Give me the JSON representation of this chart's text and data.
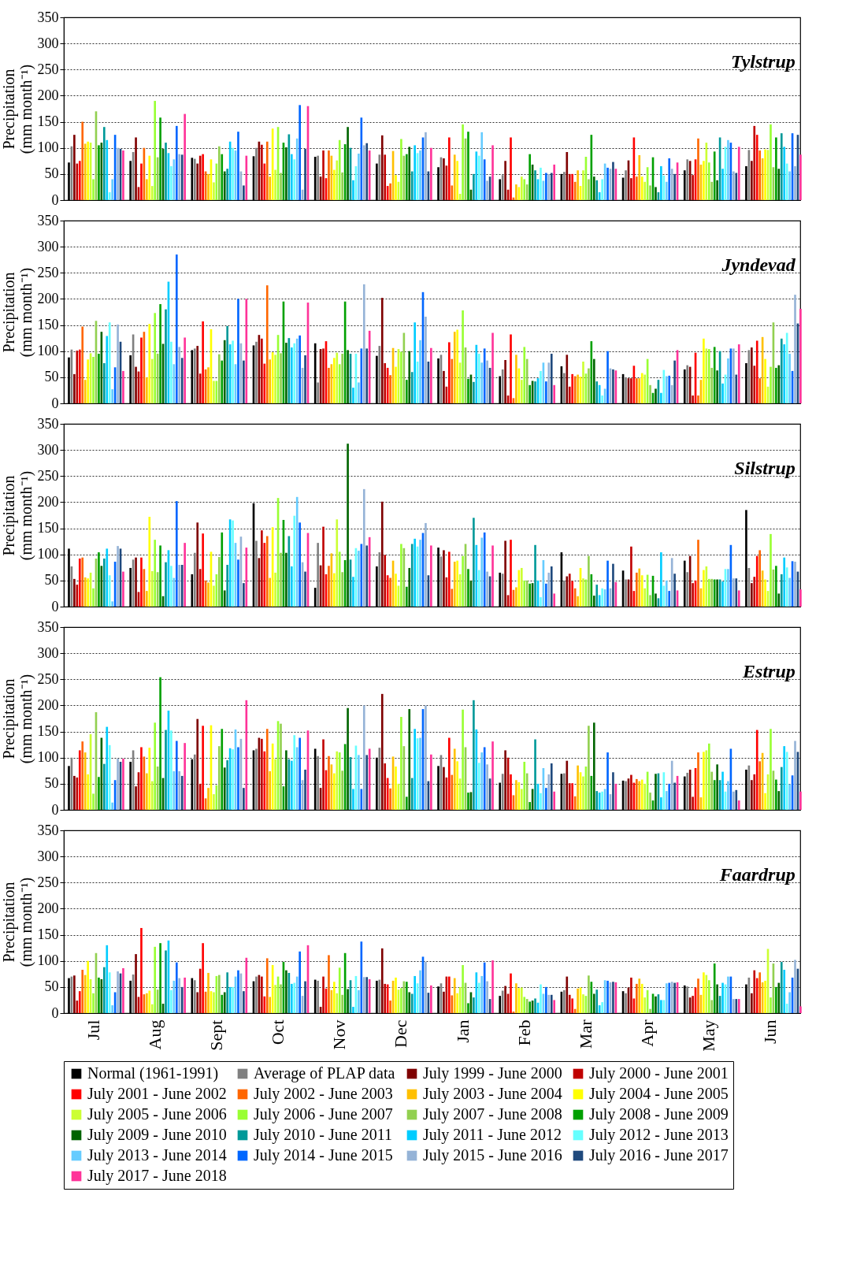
{
  "chart_data": [
    {
      "type": "bar",
      "title": "Tylstrup",
      "ylabel": "Precipitation (mm month⁻¹)",
      "categories": [
        null,
        null,
        null,
        null,
        null,
        null,
        null,
        null,
        null,
        null,
        null,
        null
      ],
      "ylim": [
        0,
        350
      ],
      "yticks": [
        0,
        50,
        100,
        150,
        200,
        250,
        300,
        350
      ],
      "grid": "y",
      "tick_labels": "y",
      "series": [
        {
          "color": "#000000",
          "values": [
            72,
            75,
            81,
            84,
            83,
            70,
            63,
            40,
            50,
            43,
            57,
            65
          ]
        },
        {
          "color": "#808080",
          "values": [
            103,
            92,
            79,
            100,
            85,
            87,
            82,
            48,
            54,
            57,
            78,
            96
          ]
        },
        {
          "color": "#7f0000",
          "values": [
            125,
            120,
            70,
            112,
            45,
            124,
            80,
            75,
            92,
            76,
            75,
            75
          ]
        },
        {
          "color": "#c00000",
          "values": [
            70,
            25,
            85,
            106,
            95,
            87,
            66,
            20,
            50,
            42,
            48,
            142
          ]
        },
        {
          "color": "#ff0000",
          "values": [
            75,
            70,
            88,
            70,
            42,
            27,
            120,
            120,
            50,
            120,
            78,
            125
          ]
        },
        {
          "color": "#ff6600",
          "values": [
            150,
            100,
            55,
            112,
            95,
            32,
            28,
            5,
            35,
            45,
            118,
            95
          ]
        },
        {
          "color": "#ffc000",
          "values": [
            108,
            40,
            50,
            45,
            85,
            94,
            87,
            30,
            57,
            86,
            68,
            80
          ]
        },
        {
          "color": "#ffff00",
          "values": [
            112,
            85,
            78,
            137,
            58,
            48,
            75,
            25,
            27,
            45,
            75,
            97
          ]
        },
        {
          "color": "#ccff33",
          "values": [
            110,
            27,
            34,
            58,
            76,
            35,
            12,
            45,
            57,
            35,
            110,
            96
          ]
        },
        {
          "color": "#99ff33",
          "values": [
            40,
            190,
            70,
            140,
            115,
            117,
            145,
            40,
            83,
            63,
            72,
            145
          ]
        },
        {
          "color": "#92d050",
          "values": [
            170,
            82,
            103,
            52,
            53,
            85,
            118,
            30,
            40,
            28,
            35,
            63
          ]
        },
        {
          "color": "#00a000",
          "values": [
            105,
            158,
            88,
            110,
            107,
            88,
            131,
            88,
            125,
            82,
            93,
            120
          ]
        },
        {
          "color": "#006400",
          "values": [
            110,
            98,
            55,
            101,
            140,
            102,
            20,
            68,
            45,
            25,
            38,
            60
          ]
        },
        {
          "color": "#009999",
          "values": [
            140,
            110,
            60,
            126,
            100,
            55,
            50,
            57,
            38,
            15,
            120,
            128
          ]
        },
        {
          "color": "#00ccff",
          "values": [
            115,
            90,
            112,
            88,
            38,
            105,
            93,
            40,
            15,
            65,
            60,
            102
          ]
        },
        {
          "color": "#66ffff",
          "values": [
            15,
            65,
            100,
            78,
            65,
            90,
            85,
            62,
            40,
            47,
            102,
            70
          ]
        },
        {
          "color": "#66ccff",
          "values": [
            40,
            78,
            95,
            118,
            89,
            95,
            130,
            37,
            70,
            35,
            115,
            55
          ]
        },
        {
          "color": "#0066ff",
          "values": [
            125,
            142,
            131,
            182,
            158,
            120,
            78,
            52,
            62,
            80,
            110,
            128
          ]
        },
        {
          "color": "#95b3d7",
          "values": [
            100,
            88,
            55,
            20,
            105,
            130,
            37,
            50,
            60,
            60,
            55,
            65
          ]
        },
        {
          "color": "#1f497d",
          "values": [
            98,
            87,
            28,
            98,
            109,
            55,
            45,
            52,
            73,
            50,
            52,
            125
          ]
        },
        {
          "color": "#ff3399",
          "values": [
            95,
            165,
            85,
            180,
            95,
            100,
            105,
            68,
            60,
            72,
            102,
            87
          ]
        }
      ]
    },
    {
      "type": "bar",
      "title": "Jyndevad",
      "ylabel": "Precipitation (mm month⁻¹)",
      "categories": [
        null,
        null,
        null,
        null,
        null,
        null,
        null,
        null,
        null,
        null,
        null,
        null
      ],
      "ylim": [
        0,
        350
      ],
      "yticks": [
        0,
        50,
        100,
        150,
        200,
        250,
        300,
        350
      ],
      "grid": "y",
      "tick_labels": "y",
      "series": [
        {
          "color": "#000000",
          "values": [
            88,
            92,
            102,
            111,
            115,
            91,
            86,
            52,
            71,
            56,
            65,
            77
          ]
        },
        {
          "color": "#808080",
          "values": [
            103,
            132,
            105,
            118,
            40,
            110,
            93,
            65,
            58,
            50,
            73,
            102
          ]
        },
        {
          "color": "#7f0000",
          "values": [
            56,
            70,
            110,
            131,
            104,
            202,
            62,
            83,
            93,
            48,
            70,
            107
          ]
        },
        {
          "color": "#c00000",
          "values": [
            101,
            61,
            57,
            124,
            105,
            77,
            32,
            15,
            32,
            48,
            15,
            72
          ]
        },
        {
          "color": "#ff0000",
          "values": [
            103,
            126,
            157,
            76,
            119,
            68,
            117,
            132,
            56,
            72,
            97,
            120
          ]
        },
        {
          "color": "#ff6600",
          "values": [
            147,
            137,
            65,
            226,
            68,
            54,
            85,
            10,
            52,
            48,
            15,
            48
          ]
        },
        {
          "color": "#ffc000",
          "values": [
            45,
            50,
            69,
            84,
            75,
            106,
            137,
            93,
            55,
            48,
            45,
            127
          ]
        },
        {
          "color": "#ffff00",
          "values": [
            84,
            152,
            142,
            98,
            87,
            70,
            141,
            67,
            51,
            58,
            124,
            85
          ]
        },
        {
          "color": "#ccff33",
          "values": [
            96,
            85,
            43,
            93,
            97,
            104,
            78,
            45,
            80,
            55,
            105,
            32
          ]
        },
        {
          "color": "#99ff33",
          "values": [
            89,
            173,
            43,
            131,
            75,
            99,
            178,
            108,
            57,
            85,
            104,
            70
          ]
        },
        {
          "color": "#92d050",
          "values": [
            158,
            95,
            94,
            96,
            95,
            135,
            107,
            85,
            67,
            35,
            68,
            155
          ]
        },
        {
          "color": "#00a000",
          "values": [
            95,
            190,
            82,
            195,
            195,
            45,
            47,
            35,
            119,
            20,
            108,
            68
          ]
        },
        {
          "color": "#006400",
          "values": [
            137,
            114,
            121,
            116,
            102,
            100,
            55,
            43,
            85,
            28,
            63,
            73
          ]
        },
        {
          "color": "#009999",
          "values": [
            77,
            180,
            148,
            125,
            95,
            60,
            41,
            42,
            42,
            45,
            100,
            124
          ]
        },
        {
          "color": "#00ccff",
          "values": [
            129,
            233,
            113,
            107,
            30,
            155,
            112,
            48,
            35,
            20,
            38,
            113
          ]
        },
        {
          "color": "#66ffff",
          "values": [
            155,
            118,
            120,
            115,
            95,
            80,
            95,
            62,
            15,
            64,
            55,
            135
          ]
        },
        {
          "color": "#66ccff",
          "values": [
            27,
            75,
            75,
            124,
            40,
            121,
            78,
            78,
            28,
            52,
            86,
            95
          ]
        },
        {
          "color": "#0066ff",
          "values": [
            69,
            285,
            200,
            130,
            105,
            213,
            105,
            42,
            100,
            53,
            105,
            62
          ]
        },
        {
          "color": "#95b3d7",
          "values": [
            151,
            108,
            115,
            68,
            228,
            166,
            82,
            78,
            67,
            35,
            105,
            208
          ]
        },
        {
          "color": "#1f497d",
          "values": [
            118,
            87,
            82,
            92,
            105,
            80,
            68,
            95,
            65,
            82,
            55,
            153
          ]
        },
        {
          "color": "#ff3399",
          "values": [
            62,
            126,
            200,
            193,
            139,
            106,
            135,
            35,
            63,
            102,
            113,
            181
          ]
        }
      ]
    },
    {
      "type": "bar",
      "title": "Silstrup",
      "ylabel": "Precipitation (mm month⁻¹)",
      "categories": [
        null,
        null,
        null,
        null,
        null,
        null,
        null,
        null,
        null,
        null,
        null,
        null
      ],
      "ylim": [
        0,
        350
      ],
      "yticks": [
        0,
        50,
        100,
        150,
        200,
        250,
        300,
        350
      ],
      "grid": "y",
      "tick_labels": "y",
      "series": [
        {
          "color": "#000000",
          "values": [
            111,
            74,
            62,
            198,
            36,
            77,
            113,
            65,
            104,
            69,
            88,
            185
          ]
        },
        {
          "color": "#808080",
          "values": [
            77,
            90,
            103,
            126,
            122,
            104,
            96,
            63,
            50,
            52,
            66,
            74
          ]
        },
        {
          "color": "#7f0000",
          "values": [
            53,
            94,
            161,
            93,
            79,
            201,
            108,
            126,
            58,
            52,
            97,
            45
          ]
        },
        {
          "color": "#c00000",
          "values": [
            42,
            28,
            72,
            146,
            153,
            99,
            56,
            22,
            63,
            115,
            45,
            57
          ]
        },
        {
          "color": "#ff0000",
          "values": [
            92,
            94,
            140,
            122,
            62,
            60,
            105,
            128,
            49,
            30,
            50,
            97
          ]
        },
        {
          "color": "#ff6600",
          "values": [
            94,
            72,
            50,
            135,
            78,
            55,
            34,
            32,
            35,
            65,
            128,
            108
          ]
        },
        {
          "color": "#ffc000",
          "values": [
            56,
            30,
            46,
            55,
            102,
            88,
            86,
            37,
            20,
            73,
            35,
            69
          ]
        },
        {
          "color": "#ffff00",
          "values": [
            54,
            172,
            105,
            152,
            64,
            63,
            88,
            70,
            74,
            60,
            70,
            52
          ]
        },
        {
          "color": "#ccff33",
          "values": [
            65,
            68,
            40,
            65,
            167,
            40,
            62,
            74,
            54,
            35,
            77,
            30
          ]
        },
        {
          "color": "#99ff33",
          "values": [
            35,
            128,
            62,
            208,
            105,
            120,
            97,
            50,
            52,
            61,
            53,
            139
          ]
        },
        {
          "color": "#92d050",
          "values": [
            92,
            66,
            95,
            103,
            66,
            112,
            120,
            50,
            97,
            22,
            53,
            71
          ]
        },
        {
          "color": "#00a000",
          "values": [
            104,
            117,
            142,
            166,
            89,
            38,
            72,
            44,
            62,
            59,
            52,
            78
          ]
        },
        {
          "color": "#006400",
          "values": [
            78,
            20,
            31,
            103,
            312,
            74,
            50,
            45,
            21,
            25,
            52,
            25
          ]
        },
        {
          "color": "#009999",
          "values": [
            92,
            85,
            80,
            135,
            90,
            120,
            170,
            118,
            42,
            16,
            52,
            62
          ]
        },
        {
          "color": "#00ccff",
          "values": [
            111,
            108,
            167,
            77,
            57,
            130,
            118,
            50,
            22,
            104,
            48,
            94
          ]
        },
        {
          "color": "#66ffff",
          "values": [
            60,
            78,
            165,
            174,
            112,
            115,
            70,
            18,
            35,
            40,
            72,
            75
          ]
        },
        {
          "color": "#66ccff",
          "values": [
            10,
            55,
            122,
            210,
            107,
            128,
            132,
            89,
            33,
            50,
            72,
            55
          ]
        },
        {
          "color": "#0066ff",
          "values": [
            86,
            202,
            90,
            161,
            120,
            141,
            142,
            44,
            88,
            30,
            118,
            87
          ]
        },
        {
          "color": "#95b3d7",
          "values": [
            116,
            80,
            134,
            85,
            225,
            160,
            67,
            65,
            35,
            93,
            54,
            86
          ]
        },
        {
          "color": "#1f497d",
          "values": [
            111,
            80,
            45,
            67,
            117,
            60,
            58,
            77,
            82,
            63,
            54,
            67
          ]
        },
        {
          "color": "#ff3399",
          "values": [
            67,
            122,
            113,
            141,
            133,
            117,
            117,
            25,
            47,
            31,
            31,
            33
          ]
        }
      ]
    },
    {
      "type": "bar",
      "title": "Estrup",
      "ylabel": "Precipitation (mm month⁻¹)",
      "categories": [
        null,
        null,
        null,
        null,
        null,
        null,
        null,
        null,
        null,
        null,
        null,
        null
      ],
      "ylim": [
        0,
        350
      ],
      "yticks": [
        0,
        50,
        100,
        150,
        200,
        250,
        300,
        350
      ],
      "grid": "y",
      "tick_labels": "y",
      "series": [
        {
          "color": "#000000",
          "values": [
            84,
            92,
            97,
            114,
            117,
            100,
            84,
            52,
            69,
            56,
            64,
            77
          ]
        },
        {
          "color": "#808080",
          "values": [
            100,
            114,
            106,
            117,
            103,
            119,
            105,
            69,
            70,
            55,
            71,
            85
          ]
        },
        {
          "color": "#7f0000",
          "values": [
            65,
            45,
            174,
            138,
            42,
            222,
            82,
            114,
            94,
            60,
            77,
            57
          ]
        },
        {
          "color": "#c00000",
          "values": [
            62,
            72,
            50,
            136,
            135,
            89,
            62,
            100,
            51,
            67,
            25,
            68
          ]
        },
        {
          "color": "#ff0000",
          "values": [
            114,
            120,
            161,
            112,
            76,
            61,
            138,
            68,
            51,
            52,
            80,
            153
          ]
        },
        {
          "color": "#ff6600",
          "values": [
            131,
            102,
            22,
            155,
            103,
            41,
            67,
            28,
            26,
            59,
            110,
            93
          ]
        },
        {
          "color": "#ffc000",
          "values": [
            110,
            70,
            42,
            74,
            87,
            102,
            117,
            57,
            85,
            55,
            24,
            109
          ]
        },
        {
          "color": "#ffff00",
          "values": [
            68,
            119,
            162,
            127,
            70,
            83,
            93,
            53,
            72,
            58,
            111,
            32
          ]
        },
        {
          "color": "#ccff33",
          "values": [
            145,
            55,
            30,
            97,
            112,
            50,
            60,
            40,
            64,
            50,
            114,
            68
          ]
        },
        {
          "color": "#99ff33",
          "values": [
            31,
            167,
            47,
            170,
            110,
            178,
            192,
            92,
            83,
            73,
            127,
            155
          ]
        },
        {
          "color": "#92d050",
          "values": [
            187,
            83,
            122,
            165,
            75,
            122,
            120,
            70,
            161,
            33,
            73,
            75
          ]
        },
        {
          "color": "#00a000",
          "values": [
            63,
            254,
            155,
            45,
            126,
            25,
            33,
            15,
            65,
            18,
            57,
            58
          ]
        },
        {
          "color": "#006400",
          "values": [
            138,
            61,
            81,
            114,
            195,
            193,
            34,
            40,
            167,
            69,
            87,
            36
          ]
        },
        {
          "color": "#009999",
          "values": [
            88,
            153,
            95,
            97,
            101,
            61,
            210,
            135,
            36,
            70,
            57,
            82
          ]
        },
        {
          "color": "#00ccff",
          "values": [
            159,
            190,
            118,
            94,
            40,
            155,
            154,
            50,
            33,
            24,
            73,
            122
          ]
        },
        {
          "color": "#66ffff",
          "values": [
            124,
            152,
            116,
            143,
            123,
            137,
            90,
            32,
            35,
            72,
            35,
            111
          ]
        },
        {
          "color": "#66ccff",
          "values": [
            14,
            74,
            154,
            120,
            105,
            138,
            110,
            80,
            40,
            36,
            55,
            49
          ]
        },
        {
          "color": "#0066ff",
          "values": [
            57,
            132,
            120,
            138,
            40,
            193,
            120,
            42,
            110,
            50,
            117,
            66
          ]
        },
        {
          "color": "#95b3d7",
          "values": [
            98,
            74,
            136,
            57,
            200,
            200,
            87,
            68,
            30,
            94,
            35,
            132
          ]
        },
        {
          "color": "#1f497d",
          "values": [
            92,
            65,
            42,
            77,
            105,
            55,
            60,
            89,
            72,
            52,
            38,
            111
          ]
        },
        {
          "color": "#ff3399",
          "values": [
            98,
            128,
            210,
            152,
            117,
            106,
            131,
            35,
            50,
            65,
            18,
            35
          ]
        }
      ]
    },
    {
      "type": "bar",
      "title": "Faardrup",
      "ylabel": "Precipitation (mm month⁻¹)",
      "categories": [
        "Jul",
        "Aug",
        "Sept",
        "Oct",
        "Nov",
        "Dec",
        "Jan",
        "Feb",
        "Mar",
        "Apr",
        "May",
        "Jun"
      ],
      "ylim": [
        0,
        350
      ],
      "yticks": [
        0,
        50,
        100,
        150,
        200,
        250,
        300,
        350
      ],
      "grid": "y",
      "legend": "bottom",
      "series": [
        {
          "name": "Normal (1961-1991)",
          "color": "#000000",
          "values": [
            67,
            62,
            67,
            61,
            64,
            62,
            51,
            33,
            41,
            42,
            53,
            55
          ]
        },
        {
          "name": "Average of PLAP data",
          "color": "#808080",
          "values": [
            70,
            74,
            63,
            70,
            62,
            64,
            57,
            43,
            44,
            38,
            51,
            68
          ]
        },
        {
          "name": "July 1999 - June 2000",
          "color": "#7f0000",
          "values": [
            72,
            113,
            40,
            73,
            12,
            124,
            41,
            52,
            70,
            49,
            30,
            38
          ]
        },
        {
          "name": "July 2000 - June 2001",
          "color": "#c00000",
          "values": [
            24,
            31,
            85,
            70,
            70,
            56,
            70,
            37,
            35,
            68,
            33,
            82
          ]
        },
        {
          "name": "July 2001 - June 2002",
          "color": "#ff0000",
          "values": [
            42,
            163,
            134,
            32,
            47,
            55,
            70,
            76,
            28,
            28,
            49,
            67
          ]
        },
        {
          "name": "July 2002 - June 2003",
          "color": "#ff6600",
          "values": [
            83,
            36,
            41,
            105,
            111,
            24,
            34,
            3,
            8,
            56,
            66,
            78
          ]
        },
        {
          "name": "July 2003 - June 2004",
          "color": "#ffc000",
          "values": [
            73,
            38,
            77,
            31,
            44,
            62,
            67,
            57,
            47,
            66,
            35,
            59
          ]
        },
        {
          "name": "July 2004 - June 2005",
          "color": "#ffff00",
          "values": [
            100,
            43,
            42,
            92,
            60,
            68,
            38,
            48,
            49,
            56,
            78,
            62
          ]
        },
        {
          "name": "July 2005 - June 2006",
          "color": "#ccff33",
          "values": [
            65,
            17,
            40,
            54,
            38,
            45,
            50,
            49,
            36,
            30,
            73,
            123
          ]
        },
        {
          "name": "July 2006 - June 2007",
          "color": "#99ff33",
          "values": [
            38,
            127,
            71,
            70,
            87,
            48,
            92,
            31,
            33,
            44,
            63,
            30
          ]
        },
        {
          "name": "July 2007 - June 2008",
          "color": "#92d050",
          "values": [
            115,
            45,
            73,
            55,
            35,
            61,
            58,
            27,
            72,
            8,
            25,
            95
          ]
        },
        {
          "name": "July 2008 - June 2009",
          "color": "#00a000",
          "values": [
            68,
            134,
            35,
            98,
            115,
            60,
            19,
            22,
            60,
            37,
            95,
            50
          ]
        },
        {
          "name": "July 2009 - June 2010",
          "color": "#006400",
          "values": [
            65,
            18,
            40,
            82,
            46,
            40,
            40,
            24,
            37,
            32,
            55,
            58
          ]
        },
        {
          "name": "July 2010 - June 2011",
          "color": "#009999",
          "values": [
            88,
            120,
            78,
            77,
            63,
            37,
            30,
            28,
            45,
            36,
            33,
            98
          ]
        },
        {
          "name": "July 2011 - June 2012",
          "color": "#00ccff",
          "values": [
            130,
            139,
            50,
            56,
            12,
            71,
            78,
            20,
            15,
            25,
            58,
            83
          ]
        },
        {
          "name": "July 2012 - June 2013",
          "color": "#66ffff",
          "values": [
            78,
            44,
            50,
            58,
            71,
            57,
            58,
            55,
            21,
            25,
            55,
            18
          ]
        },
        {
          "name": "July 2013 - June 2014",
          "color": "#66ccff",
          "values": [
            15,
            62,
            70,
            70,
            44,
            82,
            71,
            37,
            63,
            57,
            70,
            40
          ]
        },
        {
          "name": "July 2014 - June 2015",
          "color": "#0066ff",
          "values": [
            40,
            97,
            82,
            118,
            137,
            108,
            97,
            50,
            62,
            58,
            70,
            68
          ]
        },
        {
          "name": "July 2015 - June 2016",
          "color": "#95b3d7",
          "values": [
            80,
            67,
            76,
            33,
            69,
            98,
            61,
            35,
            59,
            60,
            27,
            102
          ]
        },
        {
          "name": "July 2016 - June 2017",
          "color": "#1f497d",
          "values": [
            76,
            50,
            42,
            61,
            69,
            39,
            27,
            35,
            60,
            58,
            27,
            85
          ]
        },
        {
          "name": "July 2017 - June 2018",
          "color": "#ff3399",
          "values": [
            86,
            68,
            106,
            130,
            65,
            53,
            101,
            25,
            59,
            59,
            27,
            13
          ]
        }
      ]
    }
  ]
}
